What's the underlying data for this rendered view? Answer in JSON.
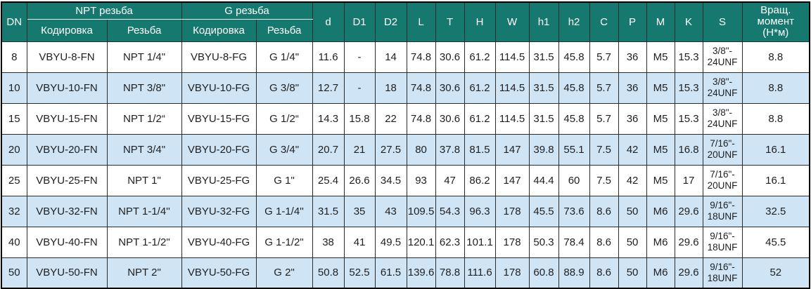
{
  "colors": {
    "header_bg": "#16796f",
    "header_text": "#ffffff",
    "row_alt_bg": "#cfe5f6",
    "row_bg": "#ffffff",
    "border_dark": "#2b2b2b",
    "outer_border": "#000000",
    "body_text": "#1f1f1f"
  },
  "table": {
    "col_dn": "DN",
    "group_npt": "NPT резьба",
    "group_g": "G резьба",
    "sub_code_npt": "Кодировка",
    "sub_thread_npt": "Резьба",
    "sub_code_g": "Кодировка",
    "sub_thread_g": "Резьба",
    "dim_cols": [
      "d",
      "D1",
      "D2",
      "L",
      "T",
      "H",
      "W",
      "h1",
      "h2",
      "C",
      "P",
      "M",
      "K",
      "S"
    ],
    "torque_label": "Вращ.\nмомент\n(Н*м)",
    "column_keys": [
      "dn",
      "npt-code",
      "npt-thread",
      "g-code",
      "g-thread",
      "d",
      "d1",
      "d2",
      "l",
      "t",
      "h",
      "w",
      "h1",
      "h2",
      "c",
      "p",
      "m",
      "k",
      "s",
      "torque"
    ],
    "rows": [
      [
        "8",
        "VBYU-8-FN",
        "NPT 1/4\"",
        "VBYU-8-FG",
        "G 1/4\"",
        "11.6",
        "-",
        "14",
        "74.8",
        "30.6",
        "61.2",
        "114.5",
        "31.5",
        "45.8",
        "5.7",
        "36",
        "M5",
        "15.3",
        "3/8\"-\n24UNF",
        "8.8"
      ],
      [
        "10",
        "VBYU-10-FN",
        "NPT 3/8\"",
        "VBYU-10-FG",
        "G 3/8\"",
        "12.7",
        "-",
        "18",
        "74.8",
        "30.6",
        "61.2",
        "114.5",
        "31.5",
        "45.8",
        "5.7",
        "36",
        "M5",
        "15.3",
        "3/8\"-\n24UNF",
        "8.8"
      ],
      [
        "15",
        "VBYU-15-FN",
        "NPT 1/2“",
        "VBYU-15-FG",
        "G 1/2“",
        "14.3",
        "15.8",
        "22",
        "74.8",
        "30.6",
        "61.2",
        "114.5",
        "31.5",
        "45.8",
        "5.7",
        "36",
        "M5",
        "15.3",
        "3/8\"-\n24UNF",
        "8.8"
      ],
      [
        "20",
        "VBYU-20-FN",
        "NPT 3/4\"",
        "VBYU-20-FG",
        "G 3/4\"",
        "20.7",
        "21",
        "27.5",
        "80",
        "37.8",
        "81.5",
        "147",
        "39.8",
        "55.1",
        "7.5",
        "42",
        "M5",
        "16.8",
        "7/16\"-\n20UNF",
        "16.1"
      ],
      [
        "25",
        "VBYU-25-FN",
        "NPT 1\"",
        "VBYU-25-FG",
        "G 1\"",
        "25.4",
        "26.6",
        "34.5",
        "93",
        "47",
        "86.2",
        "147",
        "44.4",
        "60",
        "7.5",
        "42",
        "M5",
        "17",
        "7/16\"-\n20UNF",
        "16.1"
      ],
      [
        "32",
        "VBYU-32-FN",
        "NPT 1-1/4''",
        "VBYU-32-FG",
        "G 1-1/4''",
        "31.5",
        "35",
        "43",
        "109.5",
        "54.3",
        "96.3",
        "178",
        "45.5",
        "73.6",
        "8.6",
        "50",
        "M6",
        "29.6",
        "9/16\"-\n18UNF",
        "32.5"
      ],
      [
        "40",
        "VBYU-40-FN",
        "NPT 1-1/2\"",
        "VBYU-40-FG",
        "G 1-1/2\"",
        "38",
        "41",
        "49.5",
        "120.1",
        "62.3",
        "101.1",
        "178",
        "50.3",
        "78.4",
        "8.6",
        "50",
        "M6",
        "29.6",
        "9/16\"-\n18UNF",
        "45.5"
      ],
      [
        "50",
        "VBYU-50-FN",
        "NPT 2\"",
        "VBYU-50-FG",
        "G 2\"",
        "50.8",
        "52.5",
        "61.5",
        "139.6",
        "78.8",
        "111.6",
        "178",
        "60.8",
        "88.9",
        "8.6",
        "50",
        "M6",
        "29.6",
        "9/16\"-\n18UNF",
        "52"
      ]
    ]
  }
}
